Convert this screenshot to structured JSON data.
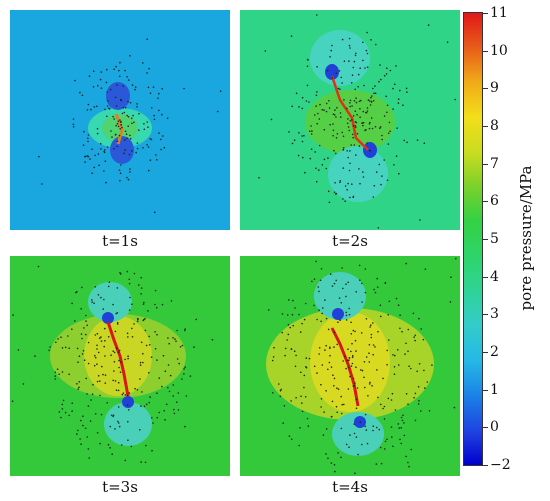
{
  "panels": [
    {
      "caption": "t=1s",
      "time_s": 1,
      "background": "#1aa6de"
    },
    {
      "caption": "t=2s",
      "time_s": 2,
      "background": "#2fd486"
    },
    {
      "caption": "t=3s",
      "time_s": 3,
      "background": "#33c93a"
    },
    {
      "caption": "t=4s",
      "time_s": 4,
      "background": "#33c93a"
    }
  ],
  "colorbar": {
    "title": "pore pressure/MPa",
    "ticks": [
      "11",
      "10",
      "9",
      "8",
      "7",
      "6",
      "5",
      "4",
      "3",
      "2",
      "1",
      "0",
      "−2"
    ],
    "min": -2,
    "max": 11,
    "colors": {
      "low": "#0000cc",
      "mid": "#33d144",
      "high": "#e01818"
    }
  }
}
